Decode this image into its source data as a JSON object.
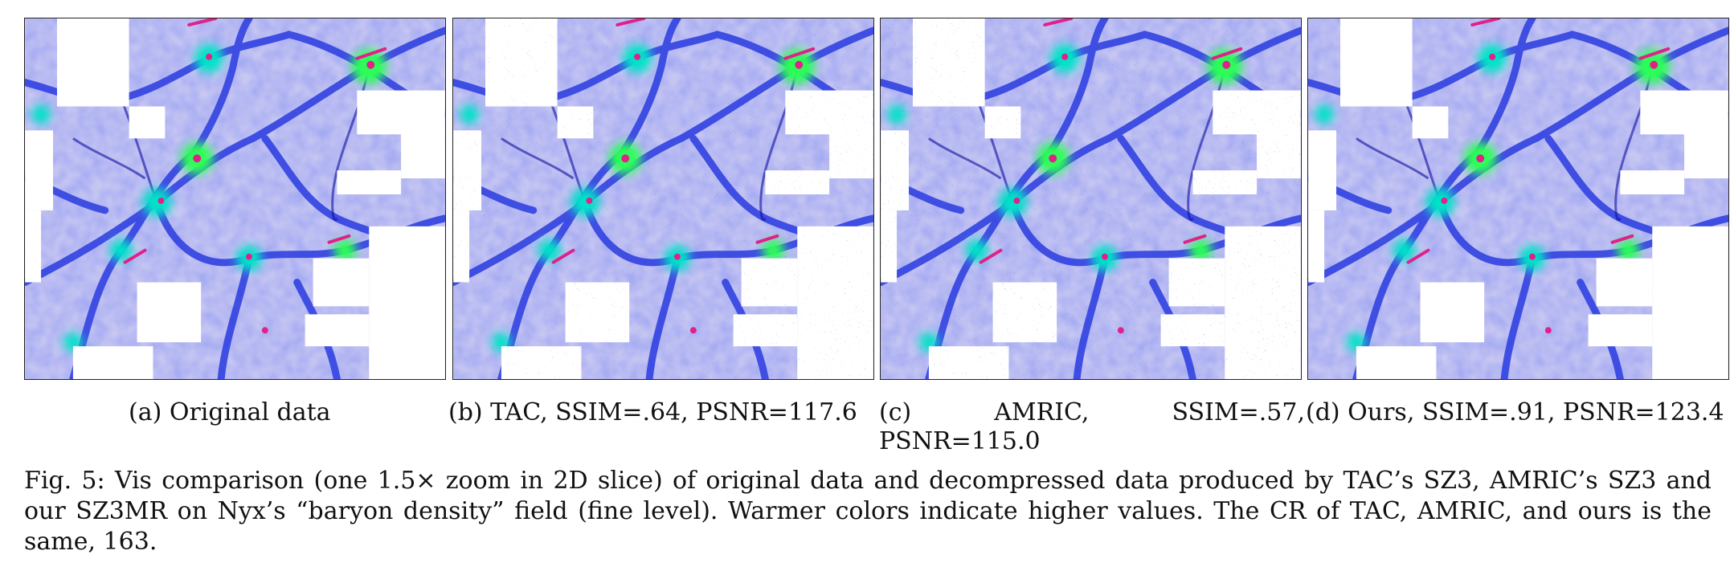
{
  "panels": [
    {
      "label": "(a)",
      "text": "Original data"
    },
    {
      "label": "(b)",
      "text": "TAC, SSIM=.64, PSNR=117.6"
    },
    {
      "label": "(c)",
      "word1": "AMRIC,",
      "word2": "SSIM=.57,",
      "word3": "PSNR=115.0"
    },
    {
      "label": "(d)",
      "text": "Ours, SSIM=.91, PSNR=123.4"
    }
  ],
  "figure_caption": "Fig. 5: Vis comparison (one 1.5× zoom in 2D slice) of original data and decompressed data produced by TAC’s SZ3, AMRIC’s SZ3 and our SZ3MR on Nyx’s “baryon density” field (fine level). Warmer colors indicate higher values. The CR of TAC, AMRIC, and ours is the same, 163.",
  "colors": {
    "background_field": "#c9c9f3",
    "filament": "#2a3be0",
    "mid": "#00e3c8",
    "high": "#2cff57",
    "peak": "#e0218a"
  }
}
